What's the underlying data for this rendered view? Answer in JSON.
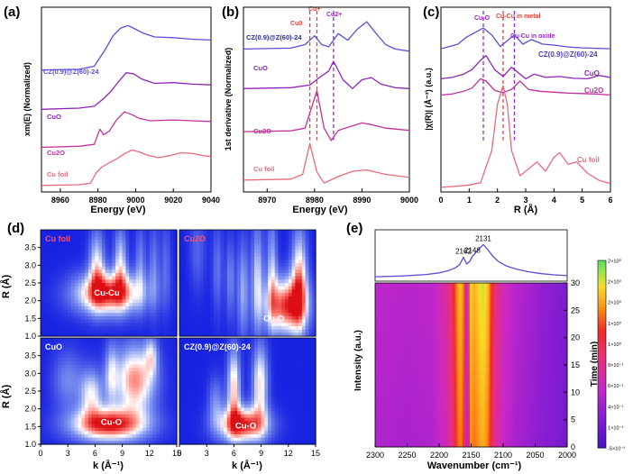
{
  "figure": {
    "panels": [
      "(a)",
      "(b)",
      "(c)",
      "(d)",
      "(e)"
    ]
  },
  "chart_data": [
    {
      "id": "a",
      "type": "line",
      "title": "",
      "xlabel": "Energy (eV)",
      "ylabel": "xm(E) (Normalized)",
      "xlim": [
        8950,
        9040
      ],
      "xticks": [
        8960,
        8980,
        9000,
        9020,
        9040
      ],
      "series": [
        {
          "name": "CZ(0.9)@Z(60)-24",
          "color": "#5a4fd6",
          "x": [
            8950,
            8970,
            8978,
            8984,
            8988,
            8992,
            8996,
            9000,
            9004,
            9010,
            9020,
            9030,
            9040
          ],
          "y": [
            3.05,
            3.07,
            3.15,
            3.6,
            3.95,
            4.15,
            4.22,
            4.12,
            4.02,
            3.92,
            3.9,
            3.86,
            3.84
          ]
        },
        {
          "name": "CuO",
          "color": "#8f23b8",
          "x": [
            8950,
            8970,
            8978,
            8983,
            8987,
            8991,
            8995,
            8999,
            9003,
            9010,
            9020,
            9030,
            9040
          ],
          "y": [
            2.02,
            2.05,
            2.1,
            2.3,
            2.5,
            2.75,
            2.98,
            2.95,
            2.82,
            2.7,
            2.72,
            2.68,
            2.66
          ]
        },
        {
          "name": "Cu2O",
          "color": "#c2329b",
          "x": [
            8950,
            8970,
            8978,
            8981,
            8983,
            8986,
            8990,
            8994,
            8998,
            9002,
            9008,
            9020,
            9030,
            9040
          ],
          "y": [
            1.02,
            1.05,
            1.1,
            1.5,
            1.35,
            1.45,
            1.75,
            1.95,
            1.88,
            1.78,
            1.72,
            1.74,
            1.72,
            1.7
          ]
        },
        {
          "name": "Cu foil",
          "color": "#e96a7c",
          "x": [
            8950,
            8970,
            8976,
            8979,
            8982,
            8986,
            8990,
            8994,
            8998,
            9002,
            9006,
            9012,
            9018,
            9024,
            9030,
            9036,
            9040
          ],
          "y": [
            0.02,
            0.04,
            0.08,
            0.35,
            0.5,
            0.62,
            0.72,
            0.85,
            0.95,
            0.9,
            0.82,
            0.75,
            0.8,
            0.88,
            0.86,
            0.8,
            0.78
          ]
        }
      ]
    },
    {
      "id": "b",
      "type": "line",
      "title": "",
      "xlabel": "Energy (eV)",
      "ylabel": "1st derivative (Normalized)",
      "xlim": [
        8965,
        9000
      ],
      "xticks": [
        8970,
        8980,
        8990,
        9000
      ],
      "markers": [
        {
          "label": "Cu0",
          "x": 8979.0,
          "color": "#e0433c"
        },
        {
          "label": "Cu+",
          "x": 8980.5,
          "color": "#e0433c"
        },
        {
          "label": "Cu2+",
          "x": 8984.0,
          "color": "#9b28c4"
        }
      ],
      "series": [
        {
          "name": "CZ(0.9)@Z(60)-24",
          "color": "#5a4fd6",
          "x": [
            8965,
            8975,
            8978,
            8980,
            8981.5,
            8983,
            8985,
            8987,
            8989,
            8991,
            8993,
            8995,
            8997,
            9000
          ],
          "y": [
            3.0,
            3.02,
            3.1,
            3.3,
            3.1,
            3.05,
            3.35,
            3.2,
            3.45,
            3.62,
            3.35,
            3.1,
            3.0,
            2.95
          ]
        },
        {
          "name": "CuO",
          "color": "#8f23b8",
          "x": [
            8965,
            8975,
            8979,
            8981,
            8983,
            8984,
            8986,
            8988,
            8990,
            8992,
            8994,
            8997,
            9000
          ],
          "y": [
            2.1,
            2.12,
            2.18,
            2.35,
            2.5,
            2.72,
            2.3,
            2.1,
            2.3,
            2.35,
            2.2,
            2.12,
            2.1
          ]
        },
        {
          "name": "Cu2O",
          "color": "#c2329b",
          "x": [
            8965,
            8975,
            8978,
            8980.5,
            8982,
            8983.5,
            8985,
            8987,
            8990,
            8992,
            8995,
            9000
          ],
          "y": [
            1.12,
            1.14,
            1.2,
            2.05,
            1.2,
            0.92,
            1.15,
            1.22,
            1.32,
            1.28,
            1.2,
            1.15
          ]
        },
        {
          "name": "Cu foil",
          "color": "#e96a7c",
          "x": [
            8965,
            8975,
            8977.5,
            8979,
            8980.5,
            8982,
            8985,
            8988,
            8991,
            8995,
            9000
          ],
          "y": [
            0.02,
            0.04,
            0.15,
            0.85,
            0.2,
            -0.05,
            0.1,
            0.22,
            0.25,
            0.15,
            0.08
          ]
        }
      ]
    },
    {
      "id": "c",
      "type": "line",
      "title": "",
      "xlabel": "R (Å)",
      "ylabel": "|χ(R)| (Å⁻³) (a.u.)",
      "xlim": [
        0,
        6
      ],
      "xticks": [
        0,
        1,
        2,
        3,
        4,
        5,
        6
      ],
      "markers": [
        {
          "label": "Cu-O",
          "x": 1.5,
          "color": "#9b28c4"
        },
        {
          "label": "Cu-Cu in metal",
          "x": 2.2,
          "color": "#e0433c"
        },
        {
          "label": "Cu-Cu in oxide",
          "x": 2.6,
          "color": "#9b28c4"
        }
      ],
      "series": [
        {
          "name": "CZ(0.9)@Z(60)-24",
          "color": "#5a4fd6",
          "x": [
            0,
            0.3,
            0.6,
            0.9,
            1.2,
            1.5,
            1.8,
            2.1,
            2.4,
            2.6,
            2.9,
            3.2,
            3.6,
            4.0,
            4.5,
            5.0,
            5.5,
            6.0
          ],
          "y": [
            3.0,
            3.05,
            3.1,
            3.25,
            3.35,
            3.45,
            3.3,
            3.05,
            3.2,
            3.3,
            3.1,
            3.2,
            3.1,
            3.08,
            3.04,
            3.02,
            3.01,
            3.0
          ]
        },
        {
          "name": "CuO",
          "color": "#8f23b8",
          "x": [
            0,
            0.4,
            0.8,
            1.1,
            1.4,
            1.6,
            1.9,
            2.2,
            2.5,
            2.7,
            3.0,
            3.3,
            3.7,
            4.2,
            4.7,
            5.2,
            5.6,
            6.0
          ],
          "y": [
            2.35,
            2.38,
            2.45,
            2.55,
            2.75,
            2.85,
            2.55,
            2.4,
            2.6,
            2.5,
            2.35,
            2.45,
            2.38,
            2.4,
            2.36,
            2.35,
            2.42,
            2.38
          ]
        },
        {
          "name": "Cu2O",
          "color": "#c2329b",
          "x": [
            0,
            0.4,
            0.8,
            1.1,
            1.4,
            1.6,
            1.9,
            2.2,
            2.5,
            2.8,
            3.1,
            3.5,
            4.0,
            4.5,
            5.0,
            5.5,
            6.0
          ],
          "y": [
            2.0,
            2.02,
            2.08,
            2.15,
            2.35,
            2.3,
            2.1,
            2.05,
            2.12,
            2.3,
            2.12,
            2.08,
            2.06,
            2.04,
            2.03,
            2.02,
            2.0
          ]
        },
        {
          "name": "Cu foil",
          "color": "#e96a7c",
          "x": [
            0,
            0.5,
            1.0,
            1.4,
            1.8,
            2.0,
            2.2,
            2.35,
            2.5,
            2.8,
            3.1,
            3.4,
            3.7,
            4.0,
            4.2,
            4.5,
            4.8,
            5.2,
            5.6,
            6.0
          ],
          "y": [
            0.0,
            0.02,
            0.05,
            0.1,
            0.8,
            1.8,
            2.2,
            1.8,
            0.8,
            0.25,
            0.4,
            0.55,
            0.35,
            0.65,
            0.75,
            0.5,
            0.55,
            0.3,
            0.15,
            0.08
          ]
        }
      ]
    },
    {
      "id": "d",
      "type": "heatmap",
      "title": "",
      "xlabel": "k (Å⁻¹)",
      "ylabel": "R (Å)",
      "xlim": [
        0,
        15
      ],
      "ylim": [
        1.0,
        4.0
      ],
      "xticks": [
        0,
        3,
        6,
        9,
        12,
        15
      ],
      "yticks": [
        1.0,
        1.5,
        2.0,
        2.5,
        3.0,
        3.5
      ],
      "maps": [
        {
          "name": "Cu foil",
          "label_color": "#ff4d6d",
          "annotation": "Cu-Cu",
          "ann_k": 7.3,
          "ann_r": 2.15,
          "blobs": [
            {
              "k": 7.5,
              "r": 2.2,
              "sk": 2.6,
              "sr": 0.42,
              "a": 1.0
            },
            {
              "k": 6.2,
              "r": 3.0,
              "sk": 0.6,
              "sr": 0.7,
              "a": 0.55
            },
            {
              "k": 8.8,
              "r": 3.1,
              "sk": 0.5,
              "sr": 0.7,
              "a": 0.5
            },
            {
              "k": 11.0,
              "r": 3.0,
              "sk": 0.4,
              "sr": 0.8,
              "a": 0.3
            },
            {
              "k": 12.5,
              "r": 2.9,
              "sk": 0.4,
              "sr": 0.9,
              "a": 0.28
            },
            {
              "k": 13.8,
              "r": 3.0,
              "sk": 0.4,
              "sr": 0.9,
              "a": 0.22
            }
          ]
        },
        {
          "name": "Cu2O",
          "label_color": "#ff4d6d",
          "annotation": "Cu-O",
          "ann_k": 10.4,
          "ann_r": 1.42,
          "blobs": [
            {
              "k": 11.8,
              "r": 1.85,
              "sk": 1.6,
              "sr": 0.55,
              "a": 0.95
            },
            {
              "k": 13.2,
              "r": 2.6,
              "sk": 0.6,
              "sr": 1.0,
              "a": 0.7
            },
            {
              "k": 10.2,
              "r": 2.8,
              "sk": 0.4,
              "sr": 1.1,
              "a": 0.45
            },
            {
              "k": 8.6,
              "r": 2.6,
              "sk": 0.45,
              "sr": 1.1,
              "a": 0.5
            },
            {
              "k": 7.0,
              "r": 2.3,
              "sk": 0.45,
              "sr": 1.0,
              "a": 0.4
            },
            {
              "k": 5.6,
              "r": 2.6,
              "sk": 0.35,
              "sr": 0.8,
              "a": 0.3
            },
            {
              "k": 4.2,
              "r": 2.9,
              "sk": 0.4,
              "sr": 0.9,
              "a": 0.25
            },
            {
              "k": 2.0,
              "r": 3.4,
              "sk": 0.6,
              "sr": 0.8,
              "a": 0.2
            }
          ]
        },
        {
          "name": "CuO",
          "label_color": "#ffffff",
          "annotation": "Cu-O",
          "ann_k": 7.8,
          "ann_r": 1.55,
          "blobs": [
            {
              "k": 7.5,
              "r": 1.55,
              "sk": 2.9,
              "sr": 0.33,
              "a": 1.0
            },
            {
              "k": 10.4,
              "r": 2.8,
              "sk": 1.6,
              "sr": 0.7,
              "a": 0.8
            },
            {
              "k": 5.6,
              "r": 2.4,
              "sk": 0.9,
              "sr": 0.5,
              "a": 0.55
            },
            {
              "k": 7.8,
              "r": 3.0,
              "sk": 0.5,
              "sr": 0.6,
              "a": 0.4
            },
            {
              "k": 3.0,
              "r": 2.8,
              "sk": 1.2,
              "sr": 0.6,
              "a": 0.3
            },
            {
              "k": 12.2,
              "r": 3.5,
              "sk": 0.5,
              "sr": 0.4,
              "a": 0.4
            }
          ]
        },
        {
          "name": "CZ(0.9)@Z(60)-24",
          "label_color": "#ffffff",
          "annotation": "Cu-O",
          "ann_k": 7.3,
          "ann_r": 1.45,
          "blobs": [
            {
              "k": 7.0,
              "r": 1.55,
              "sk": 1.9,
              "sr": 0.35,
              "a": 1.0
            },
            {
              "k": 6.0,
              "r": 2.6,
              "sk": 0.5,
              "sr": 0.8,
              "a": 0.7
            },
            {
              "k": 8.9,
              "r": 2.7,
              "sk": 0.6,
              "sr": 0.8,
              "a": 0.65
            },
            {
              "k": 4.0,
              "r": 2.2,
              "sk": 0.6,
              "sr": 0.5,
              "a": 0.3
            }
          ]
        }
      ]
    },
    {
      "id": "e",
      "type": "heatmap",
      "title": "",
      "xlabel": "Wavenumber (cm⁻¹)",
      "ylabel": "Intensity (a.u.)",
      "ylabel_right": "Time (min)",
      "xlim": [
        2300,
        2000
      ],
      "xticks": [
        2300,
        2250,
        2200,
        2150,
        2100,
        2050,
        2000
      ],
      "ylim_time": [
        0,
        30
      ],
      "time_ticks": [
        0,
        5,
        10,
        15,
        20,
        25,
        30
      ],
      "top_spectrum": {
        "peak_labels": [
          {
            "label": "2162",
            "x": 2162
          },
          {
            "label": "2148",
            "x": 2148
          },
          {
            "label": "2131",
            "x": 2131
          }
        ],
        "x": [
          2300,
          2260,
          2220,
          2200,
          2185,
          2175,
          2168,
          2162,
          2157,
          2152,
          2148,
          2144,
          2138,
          2131,
          2124,
          2116,
          2108,
          2095,
          2080,
          2060,
          2040,
          2020,
          2000
        ],
        "y": [
          0.02,
          0.04,
          0.08,
          0.12,
          0.18,
          0.25,
          0.33,
          0.52,
          0.35,
          0.42,
          0.55,
          0.62,
          0.74,
          0.85,
          0.72,
          0.55,
          0.42,
          0.3,
          0.22,
          0.15,
          0.1,
          0.07,
          0.05
        ]
      },
      "colorbar": {
        "labels": [
          "2×10⁰",
          "2×10⁰",
          "2×10⁰",
          "1×10⁰",
          "1×10⁰",
          "9×10⁻¹",
          "6×10⁻¹",
          "4×10⁻¹",
          "1×10⁻¹",
          "-5×10⁻³"
        ]
      },
      "profile_x": [
        2300,
        2250,
        2210,
        2190,
        2180,
        2175,
        2172,
        2168,
        2165,
        2162,
        2158,
        2155,
        2152,
        2150,
        2148,
        2145,
        2140,
        2135,
        2131,
        2127,
        2123,
        2118,
        2112,
        2105,
        2095,
        2080,
        2060,
        2040,
        2020,
        2000
      ],
      "profile_v": [
        0.3,
        0.28,
        0.3,
        0.4,
        0.52,
        0.66,
        0.75,
        0.82,
        0.8,
        0.74,
        0.3,
        0.42,
        0.88,
        0.86,
        0.82,
        0.8,
        0.84,
        0.88,
        0.9,
        0.86,
        0.8,
        0.62,
        0.48,
        0.4,
        0.34,
        0.28,
        0.24,
        0.2,
        0.17,
        0.14
      ]
    }
  ]
}
